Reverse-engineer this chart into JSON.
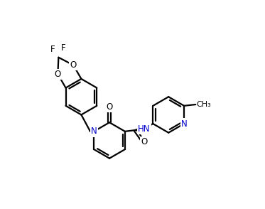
{
  "bg_color": "#ffffff",
  "line_color": "#000000",
  "N_color": "#0000cd",
  "line_width": 1.6,
  "font_size": 8.5,
  "figsize": [
    3.73,
    2.94
  ],
  "dpi": 100,
  "xlim": [
    -0.5,
    8.5
  ],
  "ylim": [
    -1.5,
    6.5
  ]
}
